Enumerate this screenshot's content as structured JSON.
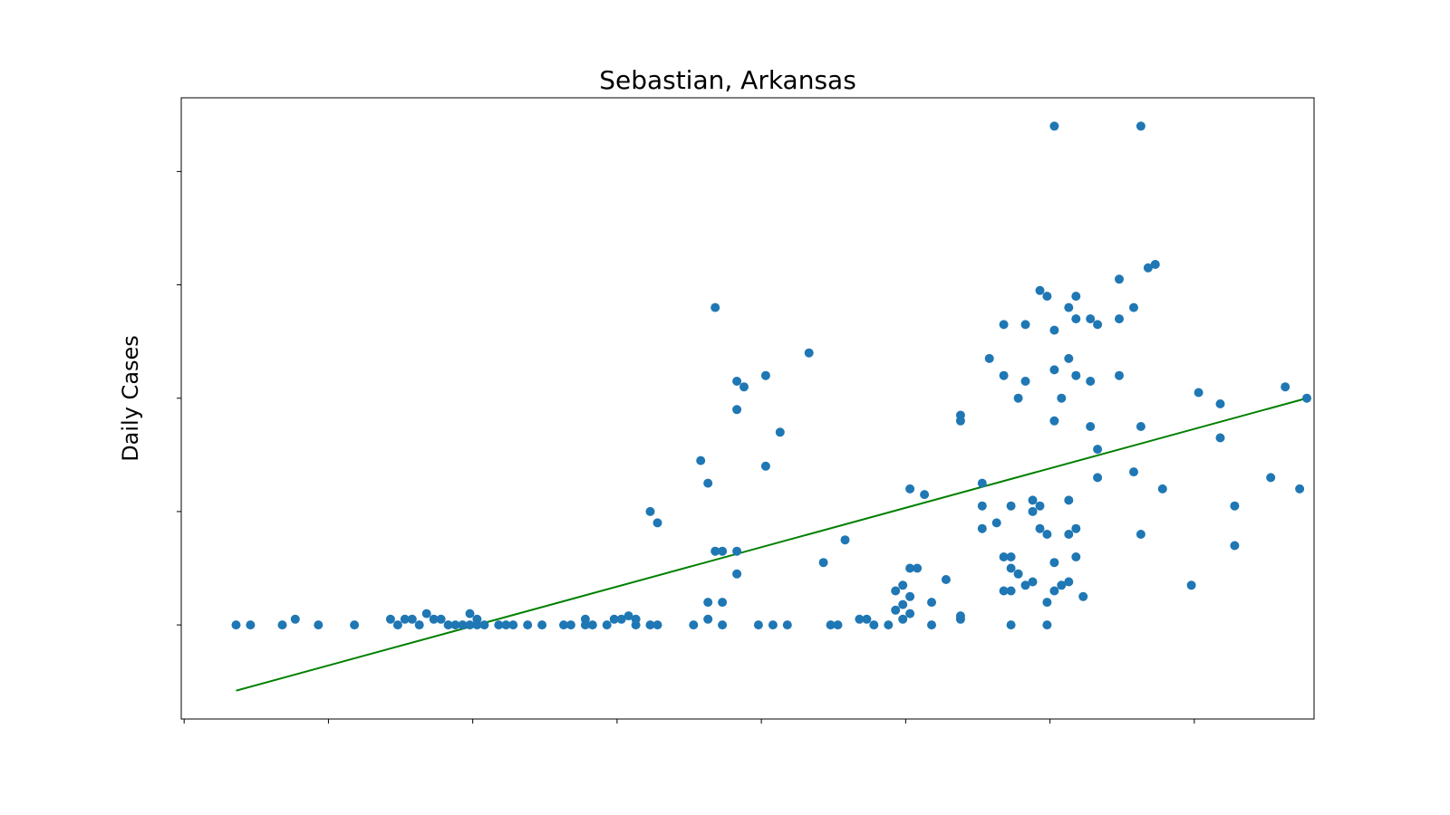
{
  "chart_data": {
    "type": "scatter",
    "title": "Sebastian, Arkansas",
    "xlabel": "",
    "ylabel": "Daily Cases",
    "x_tick_labels": [],
    "y_tick_labels": [],
    "xlim": [
      -3.5,
      75
    ],
    "ylim": [
      -8.3,
      46.5
    ],
    "y_ticks": [
      0,
      10,
      20,
      30,
      40
    ],
    "x_ticks": [
      -3.3,
      6.7,
      16.7,
      26.7,
      36.7,
      46.7,
      56.7,
      66.7
    ],
    "grid": false,
    "scatter_color": "#1f77b4",
    "trend_color": "#008000",
    "series": [
      {
        "kind": "scatter",
        "points": [
          [
            0.3,
            0
          ],
          [
            1.3,
            0
          ],
          [
            3.5,
            0
          ],
          [
            4.4,
            0.5
          ],
          [
            6,
            0
          ],
          [
            8.5,
            0
          ],
          [
            11,
            0.5
          ],
          [
            11.5,
            0
          ],
          [
            12,
            0.5
          ],
          [
            12.5,
            0.5
          ],
          [
            13,
            0
          ],
          [
            13.5,
            1
          ],
          [
            14,
            0.5
          ],
          [
            14.5,
            0.5
          ],
          [
            15,
            0
          ],
          [
            15.5,
            0
          ],
          [
            16,
            0
          ],
          [
            16.5,
            1
          ],
          [
            16.5,
            0
          ],
          [
            17,
            0.5
          ],
          [
            17,
            0
          ],
          [
            17.5,
            0
          ],
          [
            18.5,
            0
          ],
          [
            19,
            0
          ],
          [
            19.5,
            0
          ],
          [
            20.5,
            0
          ],
          [
            21.5,
            0
          ],
          [
            23,
            0
          ],
          [
            23.5,
            0
          ],
          [
            24.5,
            0.5
          ],
          [
            24.5,
            0
          ],
          [
            25,
            0
          ],
          [
            26,
            0
          ],
          [
            26.5,
            0.5
          ],
          [
            27,
            0.5
          ],
          [
            27.5,
            0.8
          ],
          [
            28,
            0.5
          ],
          [
            28,
            0
          ],
          [
            29,
            0
          ],
          [
            29.5,
            0
          ],
          [
            32,
            0
          ],
          [
            33,
            2
          ],
          [
            33,
            0.5
          ],
          [
            34,
            2
          ],
          [
            34,
            0
          ],
          [
            36.5,
            0
          ],
          [
            37.5,
            0
          ],
          [
            38.5,
            0
          ],
          [
            41.5,
            0
          ],
          [
            42,
            0
          ],
          [
            43.5,
            0.5
          ],
          [
            44,
            0.5
          ],
          [
            44.5,
            0
          ],
          [
            45.5,
            0
          ],
          [
            46.5,
            0.5
          ],
          [
            47,
            1
          ],
          [
            48.5,
            0
          ],
          [
            50.5,
            0.5
          ],
          [
            50.5,
            0.8
          ],
          [
            54,
            0
          ],
          [
            56.5,
            0
          ],
          [
            29,
            10
          ],
          [
            29.5,
            9
          ],
          [
            32.5,
            14.5
          ],
          [
            33,
            12.5
          ],
          [
            33.5,
            28
          ],
          [
            35,
            21.5
          ],
          [
            35,
            19
          ],
          [
            35.5,
            21
          ],
          [
            35,
            6.5
          ],
          [
            33.5,
            6.5
          ],
          [
            37,
            22
          ],
          [
            37,
            14
          ],
          [
            38,
            17
          ],
          [
            40,
            24
          ],
          [
            34,
            6.5
          ],
          [
            35,
            4.5
          ],
          [
            41,
            5.5
          ],
          [
            42.5,
            7.5
          ],
          [
            46,
            3
          ],
          [
            46.5,
            3.5
          ],
          [
            46,
            1.3
          ],
          [
            46.5,
            1.8
          ],
          [
            47.5,
            5
          ],
          [
            48.5,
            2
          ],
          [
            49.5,
            4
          ],
          [
            48,
            11.5
          ],
          [
            47,
            5
          ],
          [
            47,
            12
          ],
          [
            47,
            2.5
          ],
          [
            50.5,
            18.5
          ],
          [
            50.5,
            18
          ],
          [
            52,
            12.5
          ],
          [
            52,
            10.5
          ],
          [
            52,
            8.5
          ],
          [
            53,
            9
          ],
          [
            53.5,
            6
          ],
          [
            54,
            6
          ],
          [
            54.5,
            4.5
          ],
          [
            53.5,
            3
          ],
          [
            54,
            3
          ],
          [
            52.5,
            23.5
          ],
          [
            53.5,
            22
          ],
          [
            54,
            10.5
          ],
          [
            54,
            5
          ],
          [
            53.5,
            26.5
          ],
          [
            54.5,
            20
          ],
          [
            55,
            21.5
          ],
          [
            55.5,
            10
          ],
          [
            55.5,
            11
          ],
          [
            55,
            26.5
          ],
          [
            55,
            3.5
          ],
          [
            55.5,
            3.8
          ],
          [
            56,
            8.5
          ],
          [
            56,
            10.5
          ],
          [
            56.5,
            2
          ],
          [
            56.5,
            8
          ],
          [
            56,
            29.5
          ],
          [
            56.5,
            29
          ],
          [
            57,
            26
          ],
          [
            57,
            22.5
          ],
          [
            57,
            18
          ],
          [
            57,
            5.5
          ],
          [
            57,
            3
          ],
          [
            57.5,
            20
          ],
          [
            57.5,
            3.5
          ],
          [
            58,
            23.5
          ],
          [
            58,
            28
          ],
          [
            58,
            11
          ],
          [
            58,
            8
          ],
          [
            58,
            3.8
          ],
          [
            58.5,
            22
          ],
          [
            58.5,
            29
          ],
          [
            58.5,
            27
          ],
          [
            58.5,
            8.5
          ],
          [
            58.5,
            6
          ],
          [
            59,
            2.5
          ],
          [
            59.5,
            27
          ],
          [
            59.5,
            21.5
          ],
          [
            59.5,
            17.5
          ],
          [
            60,
            26.5
          ],
          [
            60,
            15.5
          ],
          [
            60,
            13
          ],
          [
            61.5,
            27
          ],
          [
            61.5,
            30.5
          ],
          [
            61.5,
            22
          ],
          [
            62.5,
            13.5
          ],
          [
            62.5,
            28
          ],
          [
            63,
            17.5
          ],
          [
            63,
            8
          ],
          [
            63,
            44
          ],
          [
            63.5,
            31.5
          ],
          [
            64,
            31.8
          ],
          [
            64.5,
            12
          ],
          [
            57,
            44
          ],
          [
            66.5,
            3.5
          ],
          [
            67,
            20.5
          ],
          [
            68.5,
            19.5
          ],
          [
            68.5,
            16.5
          ],
          [
            69.5,
            10.5
          ],
          [
            69.5,
            7
          ],
          [
            72,
            13
          ],
          [
            73,
            21
          ],
          [
            74,
            12
          ],
          [
            74.5,
            20
          ]
        ]
      },
      {
        "kind": "trend_line",
        "start": [
          0.3,
          -5.8
        ],
        "end": [
          74.5,
          20
        ]
      }
    ]
  }
}
